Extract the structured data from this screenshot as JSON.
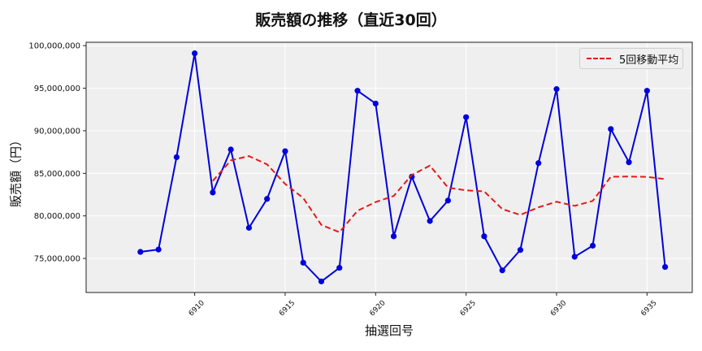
{
  "chart_data": {
    "type": "line",
    "title": "販売額の推移（直近30回）",
    "xlabel": "抽選回号",
    "ylabel": "販売額（円）",
    "x": [
      6907,
      6908,
      6909,
      6910,
      6911,
      6912,
      6913,
      6914,
      6915,
      6916,
      6917,
      6918,
      6919,
      6920,
      6921,
      6922,
      6923,
      6924,
      6925,
      6926,
      6927,
      6928,
      6929,
      6930,
      6931,
      6932,
      6933,
      6934,
      6935,
      6936
    ],
    "xticks": [
      6910,
      6915,
      6920,
      6925,
      6930,
      6935
    ],
    "xtick_labels": [
      "6910",
      "6915",
      "6920",
      "6925",
      "6930",
      "6935"
    ],
    "yticks": [
      75000000,
      80000000,
      85000000,
      90000000,
      95000000,
      100000000
    ],
    "ytick_labels": [
      "75,000,000",
      "80,000,000",
      "85,000,000",
      "90,000,000",
      "95,000,000",
      "100,000,000"
    ],
    "ylim": [
      71000000,
      100400000
    ],
    "xlim": [
      6904,
      6937.5
    ],
    "grid": true,
    "legend_position": "upper right",
    "series": [
      {
        "name": "販売額",
        "color": "#0000dd",
        "style": "solid-marker",
        "in_legend": false,
        "values": [
          75770000,
          76050000,
          86900000,
          99100000,
          82750000,
          87800000,
          78600000,
          82000000,
          87600000,
          74500000,
          72300000,
          73900000,
          94700000,
          93200000,
          77600000,
          84600000,
          79400000,
          81800000,
          91600000,
          77600000,
          73600000,
          76000000,
          86200000,
          94900000,
          75200000,
          76500000,
          90200000,
          86300000,
          94700000,
          74000000
        ]
      },
      {
        "name": "5回移動平均",
        "color": "#e31a1a",
        "style": "dashed",
        "in_legend": true,
        "values": [
          null,
          null,
          null,
          null,
          84110000,
          86520000,
          87030000,
          86050000,
          83750000,
          82100000,
          78940000,
          78080000,
          80600000,
          81620000,
          82340000,
          84800000,
          85900000,
          83320000,
          83000000,
          82880000,
          80800000,
          80120000,
          81000000,
          81660000,
          81180000,
          81760000,
          84600000,
          84620000,
          84580000,
          84320000
        ]
      }
    ]
  },
  "legend": {
    "items": [
      {
        "label": "5回移動平均",
        "color": "#e31a1a"
      }
    ]
  }
}
